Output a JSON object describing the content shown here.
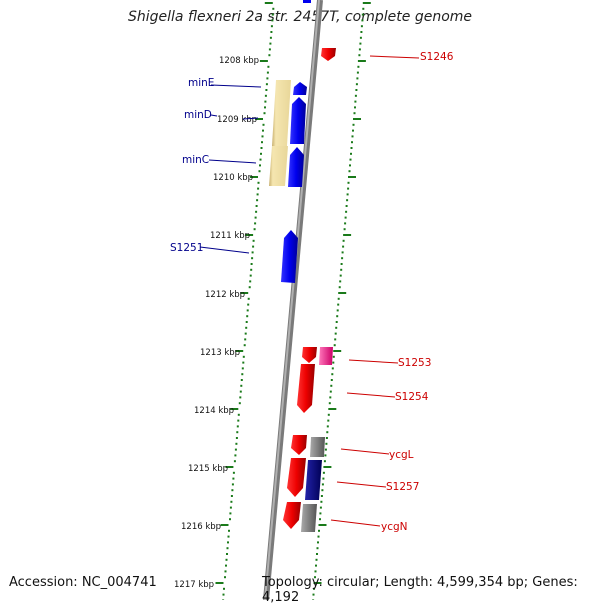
{
  "title": "Shigella flexneri 2a str. 2457T, complete genome",
  "footer": {
    "accession": "Accession: NC_004741",
    "summary": "Topology: circular; Length: 4,599,354 bp; Genes: 4,192"
  },
  "scale": {
    "unit": "kbp",
    "ticks": [
      {
        "label": "1208 kbp"
      },
      {
        "label": "1209 kbp"
      },
      {
        "label": "1210 kbp"
      },
      {
        "label": "1211 kbp"
      },
      {
        "label": "1212 kbp"
      },
      {
        "label": "1213 kbp"
      },
      {
        "label": "1214 kbp"
      },
      {
        "label": "1215 kbp"
      },
      {
        "label": "1216 kbp"
      },
      {
        "label": "1217 kbp"
      }
    ]
  },
  "genes": {
    "forward_strand": [
      {
        "name": "minE",
        "color": "#0000ee"
      },
      {
        "name": "minD",
        "color": "#0000ee"
      },
      {
        "name": "minC",
        "color": "#0000ee"
      },
      {
        "name": "S1251",
        "color": "#0000ee"
      }
    ],
    "reverse_strand": [
      {
        "name": "S1246",
        "color": "#dd0000"
      },
      {
        "name": "S1253",
        "color": "#dd0000"
      },
      {
        "name": "S1254",
        "color": "#dd0000"
      },
      {
        "name": "ycgL",
        "color": "#dd0000"
      },
      {
        "name": "S1257",
        "color": "#dd0000"
      },
      {
        "name": "ycgN",
        "color": "#dd0000"
      }
    ]
  },
  "colors": {
    "forward_cds": "#0000ee",
    "reverse_cds": "#ee0000",
    "backbone": "#9a9a9a",
    "tick_marks": "#1a7a1a",
    "orf_highlight": "#f0e0a0",
    "protein_feature_pink": "#ff3399",
    "protein_feature_gray": "#777777",
    "protein_feature_navy": "#00008b"
  }
}
